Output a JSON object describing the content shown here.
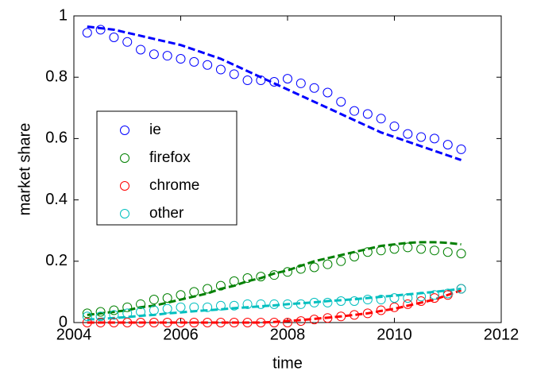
{
  "chart_data": {
    "type": "scatter",
    "xlabel": "time",
    "ylabel": "market share",
    "xlim": [
      2004,
      2012
    ],
    "xticks": [
      2004,
      2006,
      2008,
      2010,
      2012
    ],
    "ylim": [
      0,
      1
    ],
    "yticks": [
      0,
      0.2,
      0.4,
      0.6,
      0.8,
      1
    ],
    "legend": "left",
    "x": [
      2004.25,
      2004.5,
      2004.75,
      2005,
      2005.25,
      2005.5,
      2005.75,
      2006,
      2006.25,
      2006.5,
      2006.75,
      2007,
      2007.25,
      2007.5,
      2007.75,
      2008,
      2008.25,
      2008.5,
      2008.75,
      2009,
      2009.25,
      2009.5,
      2009.75,
      2010,
      2010.25,
      2010.5,
      2010.75,
      2011,
      2011.25
    ],
    "series": [
      {
        "name": "ie",
        "color": "#0000ff",
        "values": [
          0.945,
          0.955,
          0.93,
          0.915,
          0.89,
          0.875,
          0.87,
          0.86,
          0.85,
          0.84,
          0.825,
          0.81,
          0.79,
          0.79,
          0.785,
          0.795,
          0.78,
          0.765,
          0.75,
          0.72,
          0.69,
          0.68,
          0.665,
          0.64,
          0.615,
          0.605,
          0.6,
          0.58,
          0.565
        ],
        "fit": [
          0.965,
          0.96,
          0.955,
          0.945,
          0.935,
          0.925,
          0.915,
          0.905,
          0.89,
          0.875,
          0.86,
          0.84,
          0.82,
          0.8,
          0.78,
          0.76,
          0.74,
          0.72,
          0.7,
          0.68,
          0.66,
          0.64,
          0.62,
          0.605,
          0.59,
          0.575,
          0.56,
          0.545,
          0.53
        ]
      },
      {
        "name": "firefox",
        "color": "#008000",
        "values": [
          0.03,
          0.035,
          0.04,
          0.05,
          0.06,
          0.075,
          0.08,
          0.09,
          0.1,
          0.11,
          0.12,
          0.135,
          0.145,
          0.15,
          0.155,
          0.165,
          0.175,
          0.18,
          0.19,
          0.2,
          0.215,
          0.23,
          0.235,
          0.24,
          0.245,
          0.24,
          0.235,
          0.23,
          0.225
        ],
        "fit": [
          0.025,
          0.03,
          0.035,
          0.04,
          0.05,
          0.055,
          0.065,
          0.075,
          0.085,
          0.095,
          0.11,
          0.12,
          0.135,
          0.145,
          0.16,
          0.17,
          0.185,
          0.2,
          0.21,
          0.22,
          0.23,
          0.24,
          0.25,
          0.255,
          0.26,
          0.262,
          0.262,
          0.26,
          0.255
        ]
      },
      {
        "name": "chrome",
        "color": "#ff0000",
        "values": [
          0,
          0,
          0,
          0,
          0,
          0,
          0,
          0,
          0,
          0,
          0,
          0,
          0,
          0,
          0,
          0,
          0.005,
          0.01,
          0.015,
          0.02,
          0.025,
          0.03,
          0.04,
          0.05,
          0.06,
          0.07,
          0.08,
          0.09,
          0.11
        ],
        "fit": [
          0,
          0,
          0,
          0,
          0,
          0,
          0,
          0,
          0,
          0,
          0,
          0,
          0,
          0,
          0.002,
          0.005,
          0.008,
          0.012,
          0.016,
          0.02,
          0.025,
          0.03,
          0.038,
          0.045,
          0.055,
          0.065,
          0.075,
          0.09,
          0.105
        ]
      },
      {
        "name": "other",
        "color": "#00bfbf",
        "values": [
          0.02,
          0.02,
          0.025,
          0.03,
          0.035,
          0.04,
          0.045,
          0.05,
          0.05,
          0.05,
          0.055,
          0.055,
          0.06,
          0.06,
          0.06,
          0.06,
          0.06,
          0.065,
          0.065,
          0.07,
          0.07,
          0.075,
          0.075,
          0.08,
          0.08,
          0.085,
          0.09,
          0.095,
          0.11
        ],
        "fit": [
          0.01,
          0.012,
          0.015,
          0.018,
          0.022,
          0.025,
          0.03,
          0.033,
          0.037,
          0.04,
          0.043,
          0.047,
          0.05,
          0.053,
          0.056,
          0.06,
          0.063,
          0.066,
          0.07,
          0.073,
          0.076,
          0.08,
          0.084,
          0.088,
          0.092,
          0.096,
          0.1,
          0.105,
          0.11
        ]
      }
    ]
  }
}
